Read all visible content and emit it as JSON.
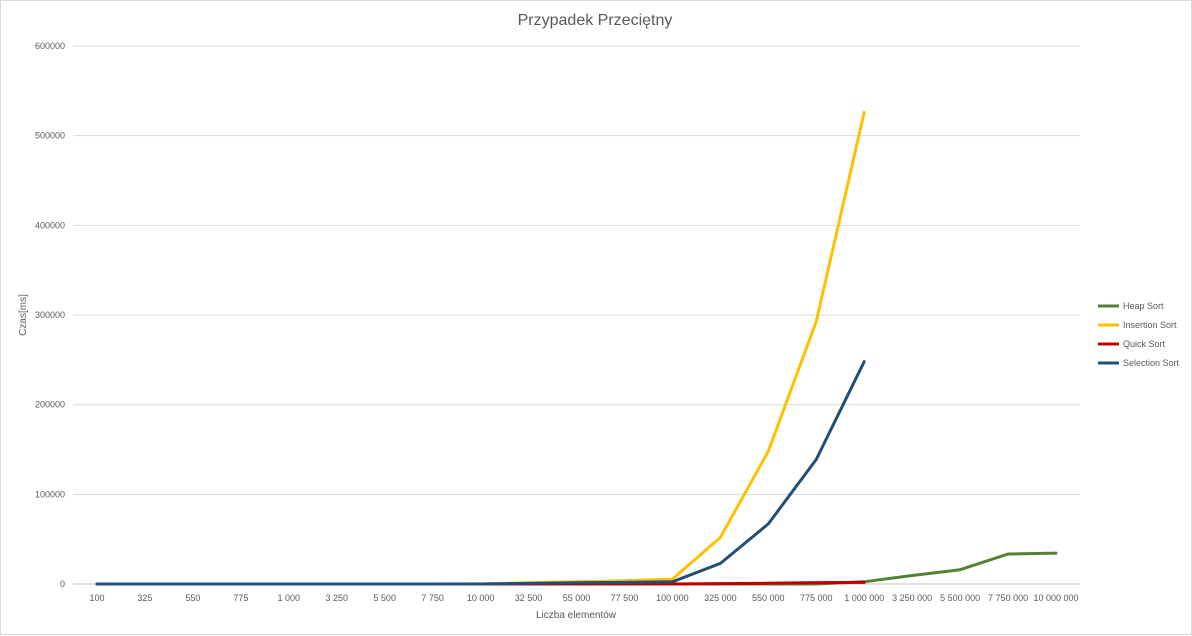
{
  "chart_data": {
    "type": "line",
    "title": "Przypadek Przeciętny",
    "xlabel": "Liczba elementów",
    "ylabel": "Czas[ms]",
    "ylim": [
      0,
      600000
    ],
    "yticks": [
      "0",
      "100000",
      "200000",
      "300000",
      "400000",
      "500000",
      "600000"
    ],
    "grid": true,
    "legend_position": "right",
    "categories": [
      "100",
      "325",
      "550",
      "775",
      "1 000",
      "3 250",
      "5 500",
      "7 750",
      "10 000",
      "32 500",
      "55 000",
      "77 500",
      "100 000",
      "325 000",
      "550 000",
      "775 000",
      "1 000 000",
      "3 250 000",
      "5 500 000",
      "7 750 000",
      "10 000 000"
    ],
    "series": [
      {
        "name": "Heap Sort",
        "color": "#548235",
        "values": [
          0,
          0,
          0,
          0,
          0,
          0,
          0,
          0,
          0,
          0,
          0,
          0,
          0,
          0,
          0,
          0,
          2500,
          9500,
          16000,
          33500,
          34500
        ]
      },
      {
        "name": "Insertion Sort",
        "color": "#ffc000",
        "values": [
          0,
          0,
          0,
          0,
          0,
          0,
          0,
          0,
          100,
          1300,
          2400,
          3600,
          5500,
          52000,
          148000,
          293000,
          526000,
          null,
          null,
          null,
          null
        ]
      },
      {
        "name": "Quick Sort",
        "color": "#c00000",
        "values": [
          0,
          0,
          0,
          0,
          0,
          0,
          0,
          0,
          0,
          0,
          0,
          0,
          0,
          500,
          800,
          1600,
          1800,
          null,
          null,
          null,
          null
        ]
      },
      {
        "name": "Selection Sort",
        "color": "#1f4e79",
        "values": [
          0,
          0,
          0,
          0,
          0,
          0,
          0,
          0,
          50,
          700,
          1300,
          1800,
          2500,
          23000,
          67000,
          139000,
          248000,
          null,
          null,
          null,
          null
        ]
      }
    ]
  }
}
